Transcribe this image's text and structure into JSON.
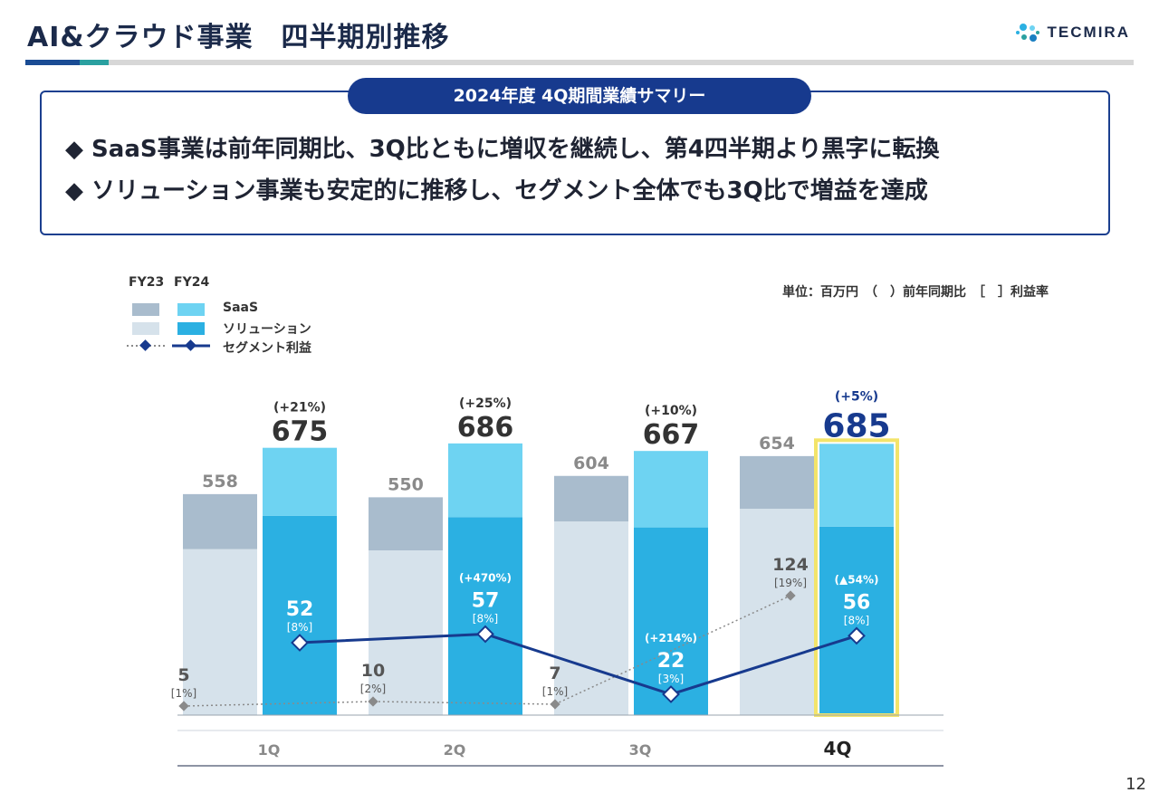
{
  "header": {
    "title": "AI&クラウド事業　四半期別推移",
    "logo_text": "TECMIRA"
  },
  "summary": {
    "heading": "2024年度 4Q期間業績サマリー",
    "bullets": [
      "◆ SaaS事業は前年同期比、3Q比ともに増収を継続し、第4四半期より黒字に転換",
      "◆ ソリューション事業も安定的に推移し、セグメント全体でも3Q比で増益を達成"
    ]
  },
  "unit_note": "単位：百万円　（　）前年同期比　［　］利益率",
  "legend": {
    "fy23": "FY23",
    "fy24": "FY24",
    "items": [
      "SaaS",
      "ソリューション",
      "セグメント利益"
    ]
  },
  "colors": {
    "fy23_saas": "#a9bccd",
    "fy23_solution": "#d6e2eb",
    "fy24_saas": "#6ed3f2",
    "fy24_solution": "#2bb0e2",
    "fy24_profit_line": "#173a8e",
    "fy23_profit_line": "#8a8a8a",
    "highlight": "#f3e46a"
  },
  "chart_data": {
    "type": "bar",
    "categories": [
      "1Q",
      "2Q",
      "3Q",
      "4Q"
    ],
    "fy23": {
      "total": [
        558,
        550,
        604,
        654
      ],
      "solution": [
        419,
        416,
        489,
        521
      ],
      "profit": [
        5,
        10,
        7,
        124
      ],
      "profit_label": [
        "5",
        "10",
        "7",
        "124"
      ],
      "margin": [
        "[1%]",
        "[2%]",
        "[1%]",
        "[19%]"
      ]
    },
    "fy24": {
      "total": [
        675,
        686,
        667,
        685
      ],
      "solution": [
        503,
        500,
        474,
        476
      ],
      "total_yoy": [
        "(+21%)",
        "(+25%)",
        "(+10%)",
        "(+5%)"
      ],
      "profit": [
        52,
        57,
        22,
        56
      ],
      "profit_label": [
        "52",
        "57",
        "22",
        "56"
      ],
      "margin": [
        "[8%]",
        "[8%]",
        "[3%]",
        "[8%]"
      ],
      "profit_yoy": [
        "",
        "(+470%)",
        "(+214%)",
        "(▲54%)"
      ]
    },
    "highlight_category": "4Q"
  },
  "page_number": "12"
}
